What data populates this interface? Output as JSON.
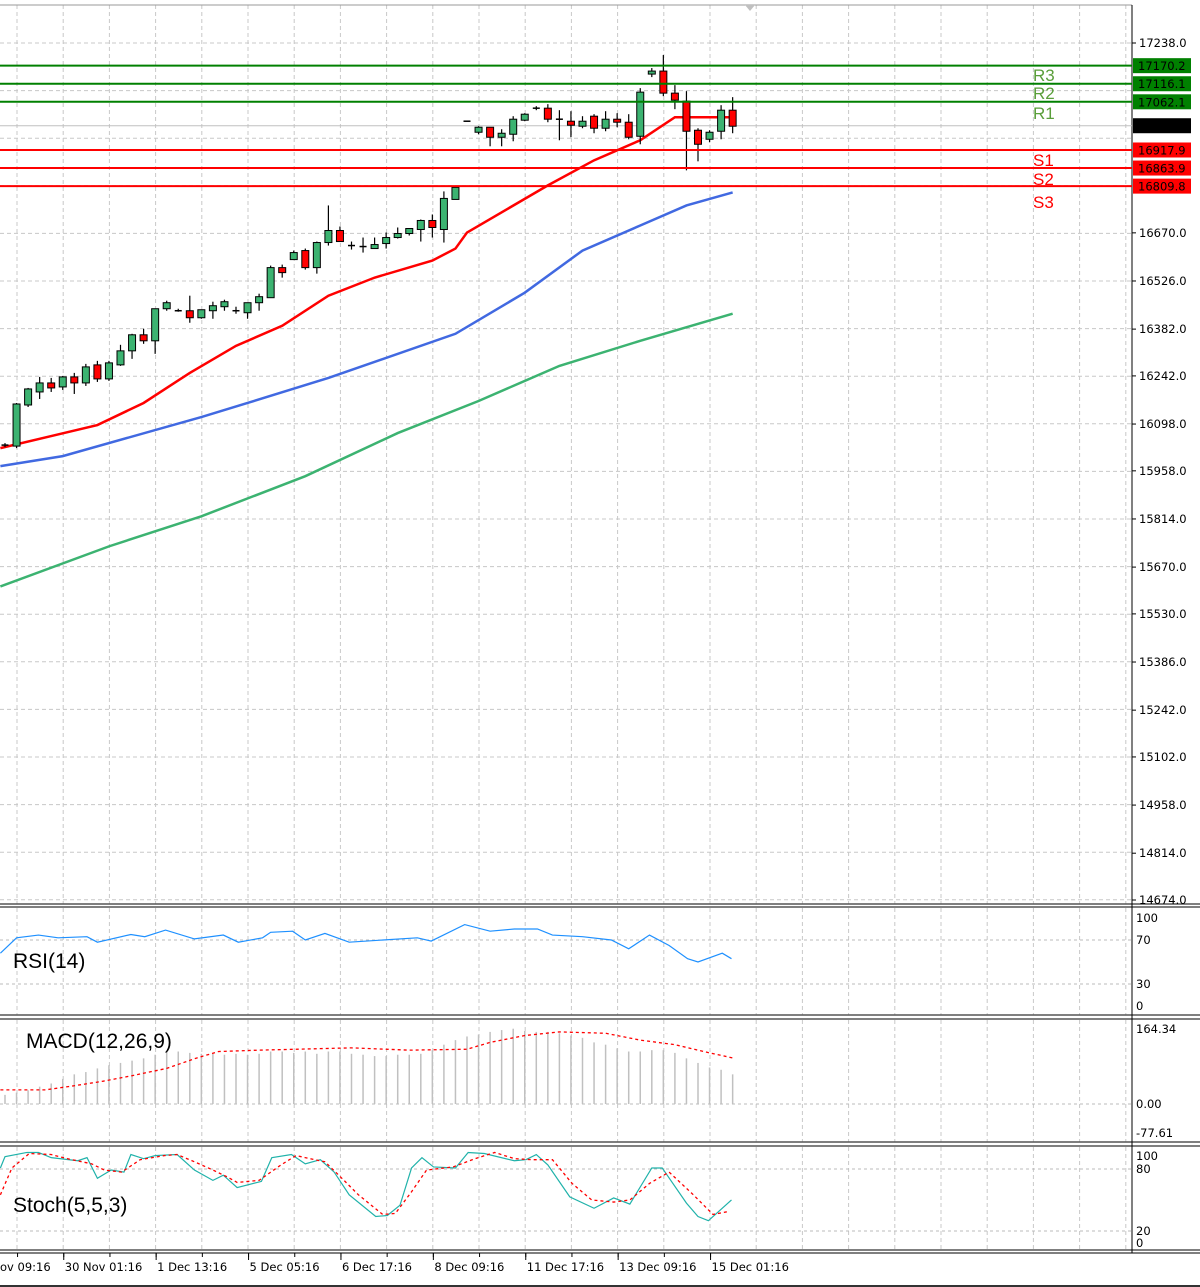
{
  "chart_data": {
    "type": "candlestick",
    "price_axis": {
      "min": 14674.0,
      "max": 17238.0,
      "ticks": [
        "17238.0",
        "16670.0",
        "16526.0",
        "16382.0",
        "16242.0",
        "16098.0",
        "15958.0",
        "15814.0",
        "15670.0",
        "15530.0",
        "15386.0",
        "15242.0",
        "15102.0",
        "14958.0",
        "14814.0",
        "14674.0"
      ]
    },
    "time_labels": [
      {
        "index": -3,
        "text": "ov 09:16"
      },
      {
        "index": 5,
        "text": "30 Nov 01:16"
      },
      {
        "index": 13,
        "text": "1 Dec 13:16"
      },
      {
        "index": 21,
        "text": "5 Dec 05:16"
      },
      {
        "index": 29,
        "text": "6 Dec 17:16"
      },
      {
        "index": 37,
        "text": "8 Dec 09:16"
      },
      {
        "index": 45,
        "text": "11 Dec 17:16"
      },
      {
        "index": 53,
        "text": "13 Dec 09:16"
      },
      {
        "index": 61,
        "text": "15 Dec 01:16"
      }
    ],
    "candles_format": [
      "open",
      "high",
      "low",
      "close"
    ],
    "candles": [
      [
        16035,
        16041,
        16029,
        16035
      ],
      [
        16032,
        16161,
        16026,
        16158
      ],
      [
        16155,
        16206,
        16149,
        16203
      ],
      [
        16194,
        16239,
        16173,
        16221
      ],
      [
        16221,
        16236,
        16194,
        16206
      ],
      [
        16209,
        16242,
        16200,
        16239
      ],
      [
        16239,
        16251,
        16188,
        16221
      ],
      [
        16221,
        16278,
        16212,
        16269
      ],
      [
        16275,
        16287,
        16224,
        16233
      ],
      [
        16233,
        16287,
        16227,
        16281
      ],
      [
        16275,
        16335,
        16272,
        16317
      ],
      [
        16317,
        16368,
        16293,
        16365
      ],
      [
        16365,
        16383,
        16338,
        16347
      ],
      [
        16347,
        16443,
        16308,
        16443
      ],
      [
        16443,
        16467,
        16437,
        16461
      ],
      [
        16437,
        16443,
        16434,
        16437
      ],
      [
        16437,
        16482,
        16401,
        16416
      ],
      [
        16416,
        16440,
        16413,
        16440
      ],
      [
        16437,
        16464,
        16413,
        16452
      ],
      [
        16449,
        16470,
        16437,
        16464
      ],
      [
        16437,
        16449,
        16428,
        16437
      ],
      [
        16431,
        16461,
        16413,
        16461
      ],
      [
        16461,
        16488,
        16437,
        16479
      ],
      [
        16476,
        16572,
        16476,
        16566
      ],
      [
        16566,
        16575,
        16536,
        16551
      ],
      [
        16590,
        16617,
        16590,
        16611
      ],
      [
        16617,
        16623,
        16560,
        16566
      ],
      [
        16566,
        16644,
        16548,
        16641
      ],
      [
        16641,
        16752,
        16632,
        16677
      ],
      [
        16677,
        16689,
        16644,
        16644
      ],
      [
        16632,
        16644,
        16620,
        16632
      ],
      [
        16629,
        16656,
        16611,
        16629
      ],
      [
        16623,
        16656,
        16623,
        16635
      ],
      [
        16638,
        16671,
        16623,
        16656
      ],
      [
        16656,
        16686,
        16653,
        16668
      ],
      [
        16668,
        16683,
        16662,
        16683
      ],
      [
        16680,
        16710,
        16644,
        16707
      ],
      [
        16707,
        16725,
        16656,
        16686
      ],
      [
        16680,
        16794,
        16641,
        16773
      ],
      [
        16770,
        16809,
        16770,
        16806
      ],
      [
        17004,
        17004,
        17004,
        17004
      ],
      [
        16971,
        16989,
        16965,
        16986
      ],
      [
        16986,
        16986,
        16929,
        16956
      ],
      [
        16956,
        16980,
        16929,
        16968
      ],
      [
        16965,
        17019,
        16944,
        17010
      ],
      [
        17007,
        17028,
        17004,
        17025
      ],
      [
        17043,
        17049,
        17037,
        17043
      ],
      [
        17043,
        17055,
        17001,
        17010
      ],
      [
        17010,
        17037,
        16947,
        17010
      ],
      [
        17004,
        17034,
        16956,
        16992
      ],
      [
        16989,
        17019,
        16983,
        17004
      ],
      [
        17019,
        17025,
        16968,
        16983
      ],
      [
        16983,
        17034,
        16974,
        17010
      ],
      [
        17010,
        17028,
        16986,
        17001
      ],
      [
        17001,
        17025,
        16950,
        16956
      ],
      [
        16959,
        17103,
        16935,
        17091
      ],
      [
        17145,
        17163,
        17136,
        17154
      ],
      [
        17154,
        17202,
        17079,
        17088
      ],
      [
        17088,
        17112,
        17040,
        17067
      ],
      [
        17064,
        17094,
        16857,
        16974
      ],
      [
        16977,
        16983,
        16884,
        16935
      ],
      [
        16950,
        16977,
        16941,
        16971
      ],
      [
        16974,
        17052,
        16950,
        17037
      ],
      [
        17037,
        17076,
        16968,
        16989
      ]
    ],
    "moving_averages": [
      {
        "name": "ma-red",
        "color": "#ff0000",
        "points": [
          [
            -0.4,
            16026
          ],
          [
            4,
            16062
          ],
          [
            8,
            16095
          ],
          [
            12,
            16161
          ],
          [
            16,
            16251
          ],
          [
            20,
            16332
          ],
          [
            24,
            16392
          ],
          [
            28,
            16482
          ],
          [
            32,
            16536
          ],
          [
            37,
            16587
          ],
          [
            39,
            16623
          ],
          [
            40,
            16671
          ],
          [
            47,
            16812
          ],
          [
            51,
            16887
          ],
          [
            55,
            16947
          ],
          [
            58,
            17016
          ],
          [
            63,
            17016
          ]
        ]
      },
      {
        "name": "ma-blue",
        "color": "#4169e1",
        "points": [
          [
            -0.4,
            15972
          ],
          [
            5,
            16002
          ],
          [
            17,
            16119
          ],
          [
            21,
            16161
          ],
          [
            28,
            16236
          ],
          [
            39,
            16368
          ],
          [
            45,
            16491
          ],
          [
            50,
            16617
          ],
          [
            55,
            16692
          ],
          [
            59,
            16752
          ],
          [
            63,
            16791
          ]
        ]
      },
      {
        "name": "ma-green",
        "color": "#3cb371",
        "points": [
          [
            -0.4,
            15612
          ],
          [
            9,
            15732
          ],
          [
            17,
            15822
          ],
          [
            26,
            15942
          ],
          [
            34,
            16071
          ],
          [
            41,
            16167
          ],
          [
            48,
            16272
          ],
          [
            55,
            16347
          ],
          [
            63,
            16428
          ]
        ]
      }
    ],
    "levels": [
      {
        "name": "R3",
        "value": 17170.2,
        "label": "17170.2",
        "color": "#008000",
        "text_color": "#5a9e3a"
      },
      {
        "name": "R2",
        "value": 17116.1,
        "label": "17116.1",
        "color": "#008000",
        "text_color": "#5a9e3a"
      },
      {
        "name": "R1",
        "value": 17062.1,
        "label": "17062.1",
        "color": "#008000",
        "text_color": "#5a9e3a"
      },
      {
        "name": "S1",
        "value": 16917.9,
        "label": "16917.9",
        "color": "#ff0000",
        "text_color": "#ff0000"
      },
      {
        "name": "S2",
        "value": 16863.9,
        "label": "16863.9",
        "color": "#ff0000",
        "text_color": "#ff0000"
      },
      {
        "name": "S3",
        "value": 16809.8,
        "label": "16809.8",
        "color": "#ff0000",
        "text_color": "#ff0000"
      }
    ],
    "current_price": {
      "value": 16990.5,
      "label": "16990.5"
    },
    "colors": {
      "bull": "#3cb371",
      "bear": "#ff0000",
      "grid": "#c8c8c8"
    },
    "indicators": {
      "rsi": {
        "label": "RSI(14)",
        "color": "#1e90ff",
        "ticks": [
          "100",
          "70",
          "30",
          "0"
        ],
        "points": [
          [
            -0.4,
            58
          ],
          [
            1.0,
            72
          ],
          [
            2.9,
            74.5
          ],
          [
            4.6,
            72
          ],
          [
            7.1,
            73
          ],
          [
            8.0,
            68
          ],
          [
            10.9,
            75
          ],
          [
            12.1,
            73
          ],
          [
            13.9,
            79
          ],
          [
            16.4,
            71
          ],
          [
            18.9,
            74.5
          ],
          [
            20.2,
            68
          ],
          [
            22.3,
            72
          ],
          [
            23.0,
            77
          ],
          [
            24.9,
            78
          ],
          [
            26.0,
            70
          ],
          [
            27.7,
            76
          ],
          [
            29.8,
            68
          ],
          [
            35.7,
            72
          ],
          [
            36.9,
            69
          ],
          [
            39.8,
            84
          ],
          [
            42.0,
            78
          ],
          [
            44.1,
            80
          ],
          [
            46.1,
            80
          ],
          [
            47.4,
            74.5
          ],
          [
            50.0,
            73
          ],
          [
            52.5,
            70
          ],
          [
            54.0,
            62
          ],
          [
            55.8,
            74.5
          ],
          [
            57.5,
            65
          ],
          [
            59.1,
            53
          ],
          [
            60.0,
            50
          ],
          [
            62.1,
            58
          ],
          [
            62.9,
            53
          ]
        ]
      },
      "macd": {
        "label": "MACD(12,26,9)",
        "ticks": [
          "164.34",
          "0.00",
          "-77.61"
        ],
        "histogram": [
          20,
          25,
          30,
          38,
          45,
          55,
          65,
          70,
          78,
          85,
          90,
          95,
          100,
          108,
          115,
          115,
          112,
          110,
          110,
          108,
          110,
          108,
          110,
          115,
          115,
          112,
          115,
          110,
          115,
          115,
          110,
          108,
          105,
          105,
          108,
          108,
          110,
          118,
          130,
          140,
          148,
          152,
          158,
          162,
          165,
          160,
          158,
          158,
          155,
          150,
          145,
          135,
          130,
          122,
          115,
          115,
          118,
          118,
          112,
          100,
          90,
          80,
          75,
          65
        ],
        "signal": [
          [
            -0.4,
            31
          ],
          [
            3.5,
            31
          ],
          [
            6,
            40
          ],
          [
            8.5,
            50
          ],
          [
            11,
            62
          ],
          [
            14,
            78
          ],
          [
            16.5,
            100
          ],
          [
            18.5,
            115
          ],
          [
            22,
            118
          ],
          [
            30,
            123
          ],
          [
            35,
            118
          ],
          [
            40,
            120
          ],
          [
            42,
            135
          ],
          [
            45,
            150
          ],
          [
            48,
            158
          ],
          [
            52,
            155
          ],
          [
            55,
            140
          ],
          [
            58,
            130
          ],
          [
            61,
            112
          ],
          [
            63,
            101
          ]
        ]
      },
      "stoch": {
        "label": "Stoch(5,5,3)",
        "ticks": [
          "100",
          "80",
          "20",
          "0"
        ],
        "main_color": "#20b2aa",
        "signal_color": "#ff0000",
        "main": [
          [
            -0.4,
            81
          ],
          [
            0.0,
            92
          ],
          [
            1.9,
            96
          ],
          [
            2.9,
            96
          ],
          [
            4.0,
            91
          ],
          [
            6.3,
            88
          ],
          [
            7.1,
            91
          ],
          [
            8.0,
            71
          ],
          [
            9.2,
            79
          ],
          [
            10.3,
            77
          ],
          [
            10.9,
            94
          ],
          [
            12.0,
            90
          ],
          [
            13.0,
            93
          ],
          [
            14.9,
            94
          ],
          [
            16.4,
            79
          ],
          [
            18.0,
            69
          ],
          [
            18.9,
            74
          ],
          [
            20.1,
            62
          ],
          [
            22.2,
            68
          ],
          [
            23.1,
            91
          ],
          [
            24.8,
            94
          ],
          [
            26.0,
            85
          ],
          [
            27.3,
            89
          ],
          [
            28.5,
            77
          ],
          [
            29.8,
            55
          ],
          [
            32.1,
            34
          ],
          [
            33.1,
            35
          ],
          [
            34.2,
            45
          ],
          [
            35.2,
            81
          ],
          [
            36.1,
            91
          ],
          [
            37.1,
            82
          ],
          [
            39.0,
            81
          ],
          [
            40.1,
            96
          ],
          [
            41.5,
            95
          ],
          [
            44.1,
            88
          ],
          [
            45.1,
            89
          ],
          [
            46.0,
            94
          ],
          [
            47.0,
            84
          ],
          [
            48.9,
            53
          ],
          [
            51.0,
            42
          ],
          [
            52.7,
            52
          ],
          [
            54.1,
            46
          ],
          [
            56.0,
            81
          ],
          [
            56.9,
            81
          ],
          [
            59.0,
            47
          ],
          [
            60.0,
            34
          ],
          [
            60.9,
            30
          ],
          [
            62.9,
            50
          ]
        ],
        "signal": [
          [
            -0.4,
            55
          ],
          [
            0.6,
            81
          ],
          [
            2.1,
            95
          ],
          [
            4.0,
            94
          ],
          [
            5.4,
            90
          ],
          [
            7.5,
            85
          ],
          [
            8.6,
            79
          ],
          [
            10.1,
            77
          ],
          [
            11.7,
            89
          ],
          [
            13.8,
            93
          ],
          [
            14.9,
            94
          ],
          [
            16.4,
            87
          ],
          [
            18.0,
            79
          ],
          [
            19.3,
            72
          ],
          [
            20.1,
            67
          ],
          [
            22.0,
            69
          ],
          [
            23.9,
            84
          ],
          [
            25.2,
            93
          ],
          [
            26.4,
            90
          ],
          [
            27.7,
            87
          ],
          [
            28.9,
            74
          ],
          [
            30.6,
            55
          ],
          [
            32.7,
            36
          ],
          [
            33.8,
            37
          ],
          [
            35.2,
            58
          ],
          [
            36.5,
            79
          ],
          [
            38.8,
            82
          ],
          [
            40.7,
            90
          ],
          [
            42.4,
            96
          ],
          [
            44.1,
            90
          ],
          [
            45.7,
            89
          ],
          [
            47.4,
            89
          ],
          [
            49.1,
            66
          ],
          [
            50.8,
            50
          ],
          [
            52.7,
            48
          ],
          [
            54.1,
            50
          ],
          [
            55.8,
            66
          ],
          [
            57.5,
            77
          ],
          [
            59.6,
            55
          ],
          [
            61.3,
            36
          ],
          [
            62.7,
            39
          ]
        ]
      }
    }
  }
}
